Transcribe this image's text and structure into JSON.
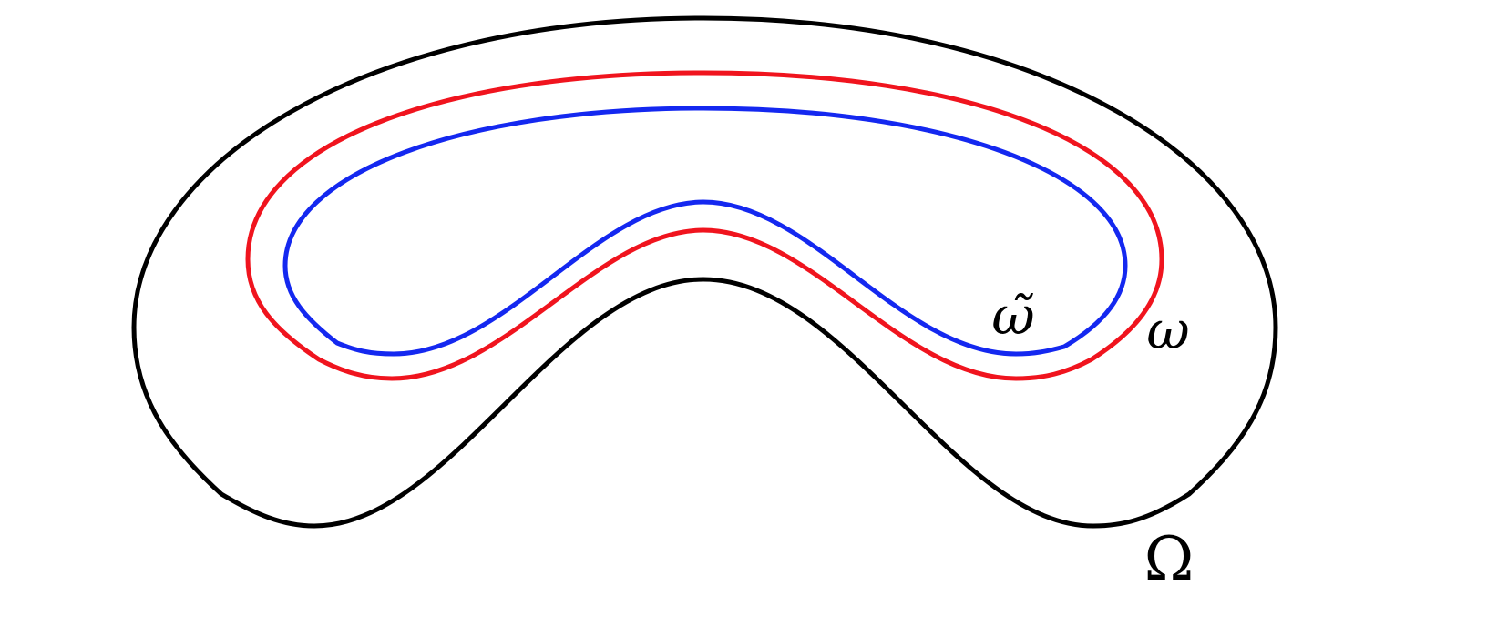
{
  "labels": {
    "inner_region": "ω̃",
    "middle_region": "ω",
    "outer_domain": "Ω"
  }
}
